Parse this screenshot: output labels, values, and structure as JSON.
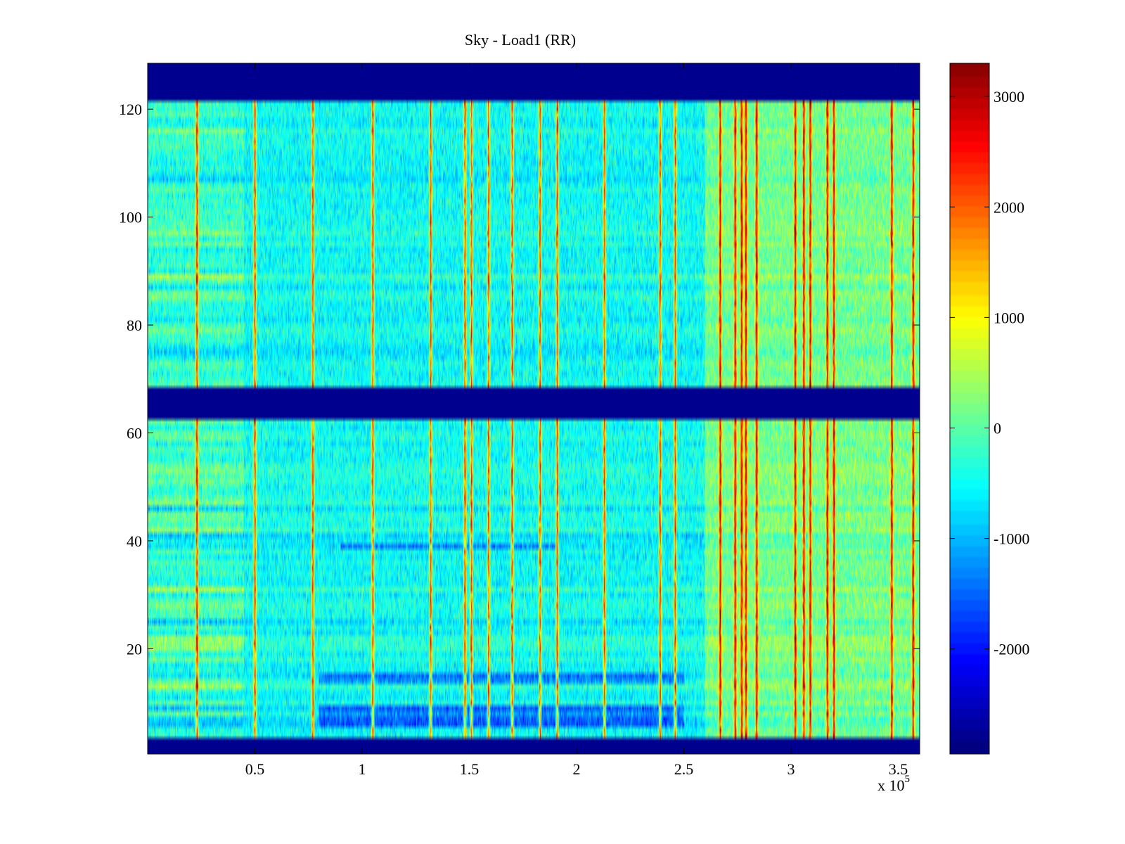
{
  "chart_data": {
    "type": "heatmap",
    "title": "Sky - Load1 (RR)",
    "xlabel": "",
    "ylabel": "",
    "x_multiplier_label": "x 10",
    "x_multiplier_exponent": "5",
    "xlim": [
      0,
      3.6
    ],
    "ylim": [
      0.5,
      128.5
    ],
    "x_ticks": [
      0.5,
      1,
      1.5,
      2,
      2.5,
      3,
      3.5
    ],
    "x_tick_labels": [
      "0.5",
      "1",
      "1.5",
      "2",
      "2.5",
      "3",
      "3.5"
    ],
    "y_ticks": [
      20,
      40,
      60,
      80,
      100,
      120
    ],
    "y_tick_labels": [
      "20",
      "40",
      "60",
      "80",
      "100",
      "120"
    ],
    "colormap": "jet",
    "clim": [
      -2950,
      3300
    ],
    "colorbar_ticks": [
      3000,
      2000,
      1000,
      0,
      -1000,
      -2000
    ],
    "colorbar_tick_labels": [
      "3000",
      "2000",
      "1000",
      "0",
      "-1000",
      "-2000"
    ],
    "masked_rows": [
      [
        0.5,
        3.5
      ],
      [
        62.5,
        68.5
      ],
      [
        121.5,
        128.5
      ]
    ],
    "bright_columns_x1e5": [
      0.23,
      0.5,
      0.77,
      1.05,
      1.32,
      1.48,
      1.51,
      1.59,
      1.7,
      1.83,
      1.91,
      2.13,
      2.39,
      2.46,
      2.67,
      2.74,
      2.77,
      2.79,
      2.84,
      3.02,
      3.06,
      3.09,
      3.17,
      3.2,
      3.47,
      3.57
    ],
    "texture_note": "Noisy heatmap, values mostly near -500 to +500 with bright red vertical streaks at the listed x positions; right third (x > 2.6e5) warmer overall."
  }
}
